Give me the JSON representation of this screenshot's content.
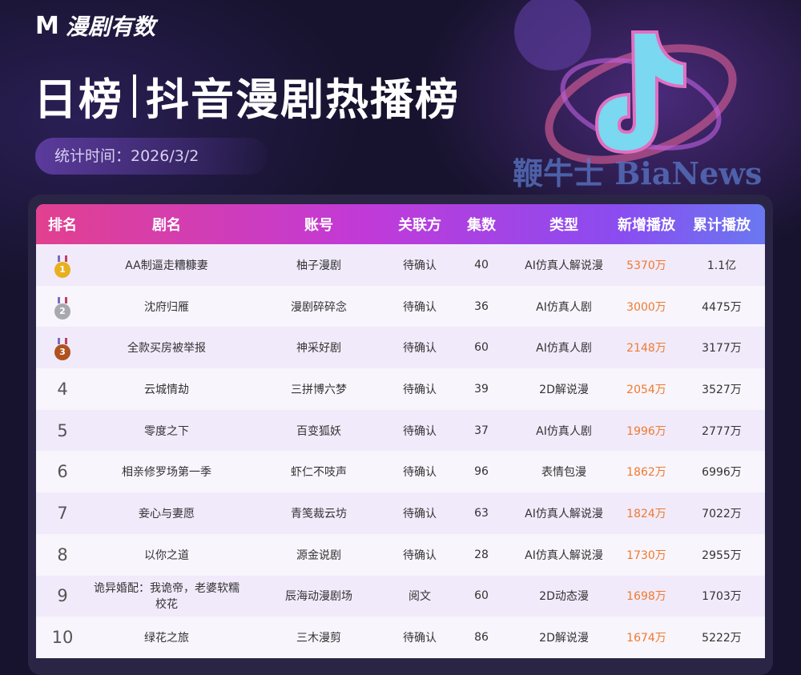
{
  "brand": {
    "name": "漫剧有数",
    "logo_letter": "M"
  },
  "title": {
    "left": "日榜",
    "right": "抖音漫剧热播榜"
  },
  "stat_time": "统计时间：2026/3/2",
  "table": {
    "headers": [
      "排名",
      "剧名",
      "账号",
      "关联方",
      "集数",
      "类型",
      "新增播放",
      "累计播放"
    ],
    "rows": [
      {
        "rank": "1",
        "medal": "gold",
        "name": "AA制逼走糟糠妻",
        "account": "柚子漫剧",
        "party": "待确认",
        "episodes": "40",
        "type": "AI仿真人解说漫",
        "new_plays": "5370万",
        "total_plays": "1.1亿"
      },
      {
        "rank": "2",
        "medal": "silver",
        "name": "沈府归雁",
        "account": "漫剧碎碎念",
        "party": "待确认",
        "episodes": "36",
        "type": "AI仿真人剧",
        "new_plays": "3000万",
        "total_plays": "4475万"
      },
      {
        "rank": "3",
        "medal": "bronze",
        "name": "全款买房被举报",
        "account": "神采好剧",
        "party": "待确认",
        "episodes": "60",
        "type": "AI仿真人剧",
        "new_plays": "2148万",
        "total_plays": "3177万"
      },
      {
        "rank": "4",
        "name": "云城情劫",
        "account": "三拼博六梦",
        "party": "待确认",
        "episodes": "39",
        "type": "2D解说漫",
        "new_plays": "2054万",
        "total_plays": "3527万"
      },
      {
        "rank": "5",
        "name": "零度之下",
        "account": "百变狐妖",
        "party": "待确认",
        "episodes": "37",
        "type": "AI仿真人剧",
        "new_plays": "1996万",
        "total_plays": "2777万"
      },
      {
        "rank": "6",
        "name": "相亲修罗场第一季",
        "account": "虾仁不吱声",
        "party": "待确认",
        "episodes": "96",
        "type": "表情包漫",
        "new_plays": "1862万",
        "total_plays": "6996万"
      },
      {
        "rank": "7",
        "name": "妾心与妻愿",
        "account": "青笺裁云坊",
        "party": "待确认",
        "episodes": "63",
        "type": "AI仿真人解说漫",
        "new_plays": "1824万",
        "total_plays": "7022万"
      },
      {
        "rank": "8",
        "name": "以你之道",
        "account": "源金说剧",
        "party": "待确认",
        "episodes": "28",
        "type": "AI仿真人解说漫",
        "new_plays": "1730万",
        "total_plays": "2955万"
      },
      {
        "rank": "9",
        "name": "诡异婚配：我诡帝，老婆软糯校花",
        "account": "辰海动漫剧场",
        "party": "阅文",
        "episodes": "60",
        "type": "2D动态漫",
        "new_plays": "1698万",
        "total_plays": "1703万"
      },
      {
        "rank": "10",
        "name": "绿花之旅",
        "account": "三木漫剪",
        "party": "待确认",
        "episodes": "86",
        "type": "2D解说漫",
        "new_plays": "1674万",
        "total_plays": "5222万"
      }
    ]
  },
  "watermark": "鞭牛士 BiaNews",
  "colors": {
    "gold": "#e8b020",
    "silver": "#a8a8b0",
    "bronze": "#b0521e",
    "new_plays": "#ef7a2e"
  }
}
